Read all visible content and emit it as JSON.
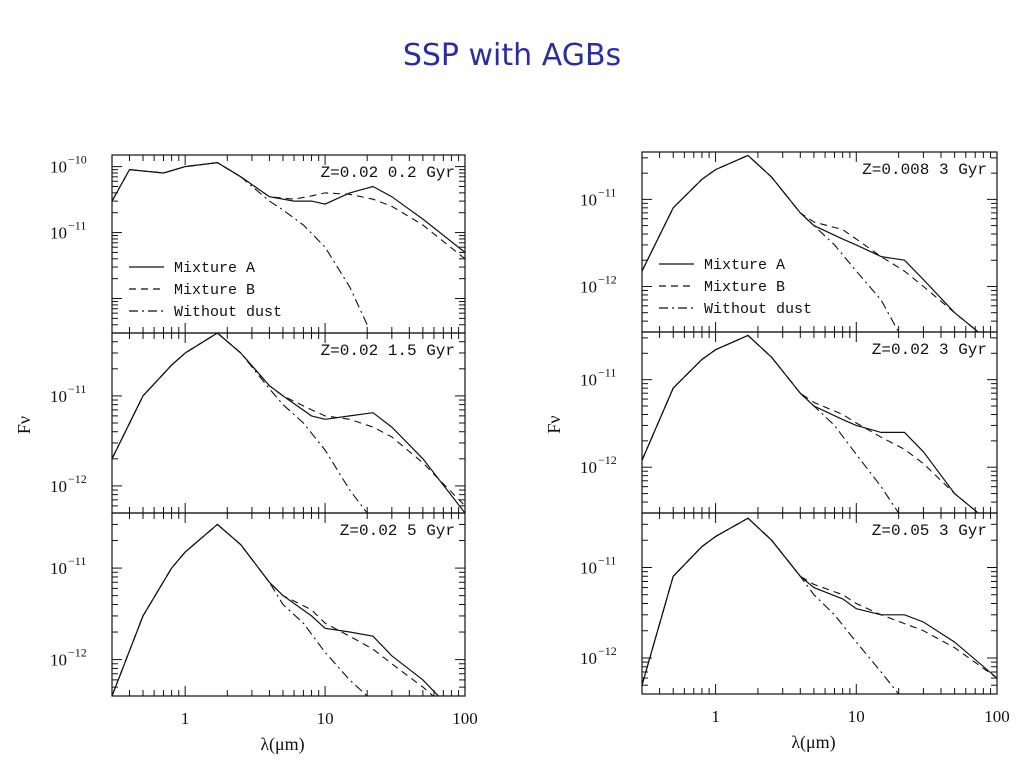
{
  "slide": {
    "title": "SSP with AGBs"
  },
  "colors": {
    "title": "#2b2f9e",
    "ink": "#111111"
  },
  "chart_data": [
    {
      "type": "line",
      "column": "left",
      "log_x": true,
      "log_y": true,
      "xlim": [
        0.3,
        100
      ],
      "ylim": [
        3e-13,
        1.5e-10
      ],
      "annotation": "Z=0.02  0.2 Gyr",
      "yticks": [
        {
          "value": 1e-10,
          "base": "10",
          "exp": "−10"
        },
        {
          "value": 1e-11,
          "base": "10",
          "exp": "−11"
        }
      ],
      "legend": [
        "Mixture A",
        "Mixture B",
        "Without dust"
      ],
      "series": [
        {
          "name": "Mixture A",
          "style": "solid",
          "x": [
            0.3,
            0.4,
            0.7,
            1,
            1.7,
            2.5,
            4,
            6,
            8,
            10,
            15,
            22,
            30,
            50,
            100
          ],
          "y": [
            3e-11,
            9e-11,
            8e-11,
            1e-10,
            1.15e-10,
            7e-11,
            3.5e-11,
            3e-11,
            3e-11,
            2.7e-11,
            4e-11,
            5e-11,
            3.5e-11,
            1.6e-11,
            5e-12
          ]
        },
        {
          "name": "Mixture B",
          "style": "dashed",
          "x": [
            0.3,
            0.4,
            0.7,
            1,
            1.7,
            2.5,
            4,
            6,
            8,
            10,
            15,
            22,
            30,
            50,
            100
          ],
          "y": [
            3e-11,
            9e-11,
            8e-11,
            1e-10,
            1.15e-10,
            7e-11,
            3.5e-11,
            3.2e-11,
            3.6e-11,
            4e-11,
            3.8e-11,
            3.2e-11,
            2.5e-11,
            1.3e-11,
            4e-12
          ]
        },
        {
          "name": "Without dust",
          "style": "dashdot",
          "x": [
            0.3,
            0.4,
            0.7,
            1,
            1.7,
            2.5,
            4,
            5,
            7,
            10,
            15,
            20
          ],
          "y": [
            3e-11,
            9e-11,
            8e-11,
            1e-10,
            1.15e-10,
            7e-11,
            3e-11,
            2.2e-11,
            1.3e-11,
            6e-12,
            1.5e-12,
            4e-13
          ]
        }
      ]
    },
    {
      "type": "line",
      "column": "left",
      "log_x": true,
      "log_y": true,
      "xlim": [
        0.3,
        100
      ],
      "ylim": [
        5e-13,
        5e-11
      ],
      "annotation": "Z=0.02  1.5 Gyr",
      "ylabel": "Fν",
      "yticks": [
        {
          "value": 1e-11,
          "base": "10",
          "exp": "−11"
        },
        {
          "value": 1e-12,
          "base": "10",
          "exp": "−12"
        }
      ],
      "series": [
        {
          "name": "Mixture A",
          "style": "solid",
          "x": [
            0.3,
            0.5,
            0.8,
            1,
            1.7,
            2.5,
            4,
            5,
            8,
            10,
            15,
            22,
            30,
            50,
            100
          ],
          "y": [
            2e-12,
            1e-11,
            2.2e-11,
            3e-11,
            5e-11,
            3e-11,
            1.3e-11,
            1e-11,
            6e-12,
            5.5e-12,
            6e-12,
            6.5e-12,
            4.5e-12,
            2e-12,
            5e-13
          ]
        },
        {
          "name": "Mixture B",
          "style": "dashed",
          "x": [
            0.3,
            0.5,
            0.8,
            1,
            1.7,
            2.5,
            4,
            5,
            8,
            10,
            15,
            22,
            30,
            50,
            100
          ],
          "y": [
            2e-12,
            1e-11,
            2.2e-11,
            3e-11,
            5e-11,
            3e-11,
            1.3e-11,
            1e-11,
            7e-12,
            6e-12,
            5.5e-12,
            4.5e-12,
            3.5e-12,
            1.8e-12,
            6e-13
          ]
        },
        {
          "name": "Without dust",
          "style": "dashdot",
          "x": [
            0.3,
            0.5,
            0.8,
            1,
            1.7,
            2.5,
            4,
            5,
            7,
            10,
            15,
            20
          ],
          "y": [
            2e-12,
            1e-11,
            2.2e-11,
            3e-11,
            5e-11,
            3e-11,
            1.2e-11,
            8e-12,
            5e-12,
            2.5e-12,
            9e-13,
            5e-13
          ]
        }
      ]
    },
    {
      "type": "line",
      "column": "left",
      "log_x": true,
      "log_y": true,
      "xlim": [
        0.3,
        100
      ],
      "ylim": [
        4e-13,
        4e-11
      ],
      "annotation": "Z=0.02  5 Gyr",
      "xlabel": "λ(μm)",
      "xticks": [
        "1",
        "10",
        "100"
      ],
      "yticks": [
        {
          "value": 1e-11,
          "base": "10",
          "exp": "−11"
        },
        {
          "value": 1e-12,
          "base": "10",
          "exp": "−12"
        }
      ],
      "series": [
        {
          "name": "Mixture A",
          "style": "solid",
          "x": [
            0.3,
            0.5,
            0.8,
            1,
            1.7,
            2.5,
            4,
            5,
            8,
            10,
            15,
            22,
            30,
            50,
            100
          ],
          "y": [
            4e-13,
            3e-12,
            1e-11,
            1.5e-11,
            3e-11,
            1.8e-11,
            7e-12,
            5e-12,
            3e-12,
            2.2e-12,
            2e-12,
            1.8e-12,
            1.1e-12,
            6e-13,
            2e-13
          ]
        },
        {
          "name": "Mixture B",
          "style": "dashed",
          "x": [
            0.3,
            0.5,
            0.8,
            1,
            1.7,
            2.5,
            4,
            5,
            8,
            10,
            15,
            22,
            30,
            50,
            100
          ],
          "y": [
            4e-13,
            3e-12,
            1e-11,
            1.5e-11,
            3e-11,
            1.8e-11,
            7e-12,
            5e-12,
            3.5e-12,
            2.5e-12,
            1.8e-12,
            1.3e-12,
            9e-13,
            5e-13,
            2e-13
          ]
        },
        {
          "name": "Without dust",
          "style": "dashdot",
          "x": [
            0.3,
            0.5,
            0.8,
            1,
            1.7,
            2.5,
            4,
            5,
            7,
            10,
            15,
            20
          ],
          "y": [
            4e-13,
            3e-12,
            1e-11,
            1.5e-11,
            3e-11,
            1.8e-11,
            7e-12,
            4e-12,
            2.5e-12,
            1.2e-12,
            6e-13,
            4e-13
          ]
        }
      ]
    },
    {
      "type": "line",
      "column": "right",
      "log_x": true,
      "log_y": true,
      "xlim": [
        0.3,
        100
      ],
      "ylim": [
        3e-13,
        3.5e-11
      ],
      "annotation": "Z=0.008  3 Gyr",
      "yticks": [
        {
          "value": 1e-11,
          "base": "10",
          "exp": "−11"
        },
        {
          "value": 1e-12,
          "base": "10",
          "exp": "−12"
        }
      ],
      "legend": [
        "Mixture A",
        "Mixture B",
        "Without dust"
      ],
      "series": [
        {
          "name": "Mixture A",
          "style": "solid",
          "x": [
            0.3,
            0.5,
            0.8,
            1,
            1.7,
            2.5,
            4,
            5,
            8,
            10,
            15,
            22,
            30,
            50,
            100
          ],
          "y": [
            1.5e-12,
            8e-12,
            1.7e-11,
            2.2e-11,
            3.2e-11,
            1.8e-11,
            7e-12,
            5e-12,
            3.5e-12,
            3e-12,
            2.2e-12,
            2e-12,
            1.2e-12,
            5e-13,
            2e-13
          ]
        },
        {
          "name": "Mixture B",
          "style": "dashed",
          "x": [
            0.3,
            0.5,
            0.8,
            1,
            1.7,
            2.5,
            4,
            5,
            8,
            10,
            15,
            22,
            30,
            50,
            100
          ],
          "y": [
            1.5e-12,
            8e-12,
            1.7e-11,
            2.2e-11,
            3.2e-11,
            1.8e-11,
            7e-12,
            5.5e-12,
            4.5e-12,
            3.5e-12,
            2.2e-12,
            1.5e-12,
            1e-12,
            5e-13,
            2e-13
          ]
        },
        {
          "name": "Without dust",
          "style": "dashdot",
          "x": [
            0.3,
            0.5,
            0.8,
            1,
            1.7,
            2.5,
            4,
            5,
            7,
            10,
            15,
            20
          ],
          "y": [
            1.5e-12,
            8e-12,
            1.7e-11,
            2.2e-11,
            3.2e-11,
            1.8e-11,
            7e-12,
            5e-12,
            3e-12,
            1.5e-12,
            7e-13,
            3e-13
          ]
        }
      ]
    },
    {
      "type": "line",
      "column": "right",
      "log_x": true,
      "log_y": true,
      "xlim": [
        0.3,
        100
      ],
      "ylim": [
        3e-13,
        3.5e-11
      ],
      "annotation": "Z=0.02  3 Gyr",
      "ylabel": "Fν",
      "yticks": [
        {
          "value": 1e-11,
          "base": "10",
          "exp": "−11"
        },
        {
          "value": 1e-12,
          "base": "10",
          "exp": "−12"
        }
      ],
      "series": [
        {
          "name": "Mixture A",
          "style": "solid",
          "x": [
            0.3,
            0.5,
            0.8,
            1,
            1.7,
            2.5,
            4,
            5,
            8,
            10,
            15,
            22,
            30,
            50,
            100
          ],
          "y": [
            1.2e-12,
            8e-12,
            1.7e-11,
            2.2e-11,
            3.2e-11,
            1.8e-11,
            7e-12,
            5e-12,
            3.5e-12,
            3e-12,
            2.5e-12,
            2.5e-12,
            1.5e-12,
            5e-13,
            2e-13
          ]
        },
        {
          "name": "Mixture B",
          "style": "dashed",
          "x": [
            0.3,
            0.5,
            0.8,
            1,
            1.7,
            2.5,
            4,
            5,
            8,
            10,
            15,
            22,
            30,
            50,
            100
          ],
          "y": [
            1.2e-12,
            8e-12,
            1.7e-11,
            2.2e-11,
            3.2e-11,
            1.8e-11,
            7e-12,
            5.5e-12,
            4e-12,
            3.2e-12,
            2.2e-12,
            1.6e-12,
            1.1e-12,
            5e-13,
            2e-13
          ]
        },
        {
          "name": "Without dust",
          "style": "dashdot",
          "x": [
            0.3,
            0.5,
            0.8,
            1,
            1.7,
            2.5,
            4,
            5,
            7,
            10,
            15,
            20
          ],
          "y": [
            1.2e-12,
            8e-12,
            1.7e-11,
            2.2e-11,
            3.2e-11,
            1.8e-11,
            7e-12,
            5e-12,
            3e-12,
            1.4e-12,
            6e-13,
            3e-13
          ]
        }
      ]
    },
    {
      "type": "line",
      "column": "right",
      "log_x": true,
      "log_y": true,
      "xlim": [
        0.3,
        100
      ],
      "ylim": [
        4e-13,
        4e-11
      ],
      "annotation": "Z=0.05  3 Gyr",
      "xlabel": "λ(μm)",
      "xticks": [
        "1",
        "10",
        "100"
      ],
      "yticks": [
        {
          "value": 1e-11,
          "base": "10",
          "exp": "−11"
        },
        {
          "value": 1e-12,
          "base": "10",
          "exp": "−12"
        }
      ],
      "series": [
        {
          "name": "Mixture A",
          "style": "solid",
          "x": [
            0.3,
            0.5,
            0.8,
            1,
            1.7,
            2.5,
            4,
            5,
            8,
            10,
            15,
            22,
            30,
            50,
            100
          ],
          "y": [
            5e-13,
            8e-12,
            1.7e-11,
            2.2e-11,
            3.5e-11,
            2e-11,
            8e-12,
            6e-12,
            4.5e-12,
            3.5e-12,
            3e-12,
            3e-12,
            2.5e-12,
            1.5e-12,
            6e-13
          ]
        },
        {
          "name": "Mixture B",
          "style": "dashed",
          "x": [
            0.3,
            0.5,
            0.8,
            1,
            1.7,
            2.5,
            4,
            5,
            8,
            10,
            15,
            22,
            30,
            50,
            100
          ],
          "y": [
            5e-13,
            8e-12,
            1.7e-11,
            2.2e-11,
            3.5e-11,
            2e-11,
            8e-12,
            6.5e-12,
            5e-12,
            4e-12,
            3e-12,
            2.4e-12,
            2e-12,
            1.3e-12,
            6e-13
          ]
        },
        {
          "name": "Without dust",
          "style": "dashdot",
          "x": [
            0.3,
            0.5,
            0.8,
            1,
            1.7,
            2.5,
            4,
            5,
            7,
            10,
            15,
            20
          ],
          "y": [
            5e-13,
            8e-12,
            1.7e-11,
            2.2e-11,
            3.5e-11,
            2e-11,
            8e-12,
            5e-12,
            3e-12,
            1.5e-12,
            7e-13,
            4e-13
          ]
        }
      ]
    }
  ]
}
